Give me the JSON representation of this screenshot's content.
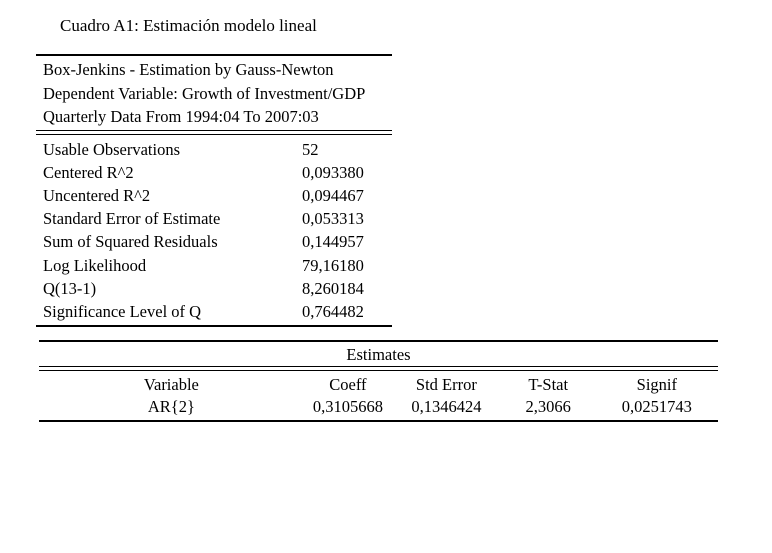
{
  "page": {
    "title": "Cuadro A1: Estimación modelo lineal"
  },
  "model_summary": {
    "header_lines": [
      "Box-Jenkins - Estimation by Gauss-Newton",
      "Dependent Variable: Growth of Investment/GDP",
      "Quarterly Data From 1994:04 To 2007:03"
    ],
    "stats": [
      {
        "label": "Usable Observations",
        "value": "52"
      },
      {
        "label": "Centered R^2",
        "value": "0,093380"
      },
      {
        "label": "Uncentered R^2",
        "value": "0,094467"
      },
      {
        "label": "Standard Error of Estimate",
        "value": "0,053313"
      },
      {
        "label": "Sum of Squared Residuals",
        "value": "0,144957"
      },
      {
        "label": "Log Likelihood",
        "value": "79,16180"
      },
      {
        "label": "Q(13-1)",
        "value": "8,260184"
      },
      {
        "label": "Significance Level of Q",
        "value": "0,764482"
      }
    ]
  },
  "estimates_table": {
    "title": "Estimates",
    "columns": [
      "Variable",
      "Coeff",
      "Std Error",
      "T-Stat",
      "Signif"
    ],
    "rows": [
      [
        "AR{2}",
        "0,3105668",
        "0,1346424",
        "2,3066",
        "0,0251743"
      ]
    ]
  },
  "colors": {
    "text": "#000000",
    "background": "#ffffff",
    "rule": "#000000"
  }
}
